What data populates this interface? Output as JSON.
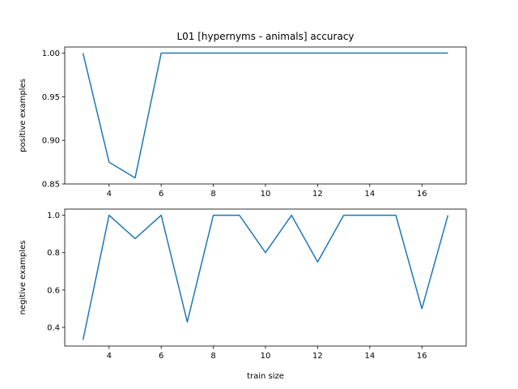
{
  "chart_data": {
    "type": "line",
    "title": "L01 [hypernyms - animals] accuracy",
    "xlabel": "train size",
    "x": [
      3,
      4,
      5,
      6,
      7,
      8,
      9,
      10,
      11,
      12,
      13,
      14,
      15,
      16,
      17
    ],
    "xlim": [
      2.3,
      17.7
    ],
    "xticks": [
      4,
      6,
      8,
      10,
      12,
      14,
      16
    ],
    "line_color": "#1f77b4",
    "grid": false,
    "subplots": [
      {
        "ylabel": "positive examples",
        "ylim": [
          0.85,
          1.007
        ],
        "yticks": [
          "0.85",
          "0.90",
          "0.95",
          "1.00"
        ],
        "values": [
          1.0,
          0.875,
          0.857,
          1.0,
          1.0,
          1.0,
          1.0,
          1.0,
          1.0,
          1.0,
          1.0,
          1.0,
          1.0,
          1.0,
          1.0
        ]
      },
      {
        "ylabel": "negitive examples",
        "ylim": [
          0.3,
          1.033
        ],
        "yticks": [
          "0.4",
          "0.6",
          "0.8",
          "1.0"
        ],
        "values": [
          0.333,
          1.0,
          0.875,
          1.0,
          0.429,
          1.0,
          1.0,
          0.8,
          1.0,
          0.75,
          1.0,
          1.0,
          1.0,
          0.5,
          1.0
        ]
      }
    ]
  }
}
